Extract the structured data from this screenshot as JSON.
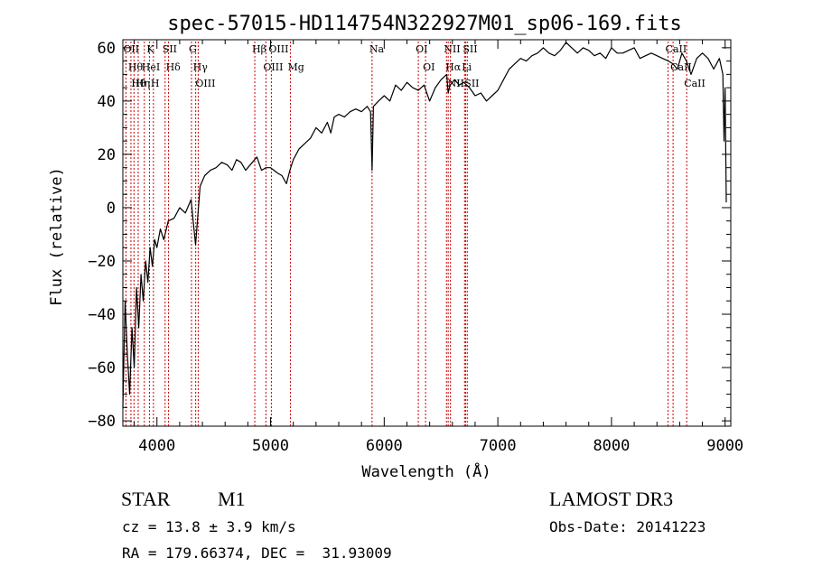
{
  "chart_data": {
    "type": "line",
    "title": "spec-57015-HD114754N322927M01_sp06-169.fits",
    "xlabel": "Wavelength (Å)",
    "ylabel": "Flux (relative)",
    "xlim": [
      3700,
      9050
    ],
    "ylim": [
      -82,
      63
    ],
    "xticks": [
      4000,
      5000,
      6000,
      7000,
      8000,
      9000
    ],
    "yticks": [
      -80,
      -60,
      -40,
      -20,
      0,
      20,
      40,
      60
    ],
    "grid": false,
    "legend": "none",
    "line_color": "#000000",
    "marker_color": "#cc0000",
    "x": [
      3700,
      3720,
      3740,
      3760,
      3780,
      3800,
      3820,
      3840,
      3860,
      3880,
      3900,
      3920,
      3940,
      3960,
      3980,
      4000,
      4030,
      4060,
      4100,
      4150,
      4200,
      4250,
      4300,
      4340,
      4380,
      4420,
      4470,
      4520,
      4570,
      4620,
      4660,
      4700,
      4740,
      4780,
      4820,
      4860,
      4880,
      4920,
      4960,
      5000,
      5030,
      5060,
      5100,
      5140,
      5170,
      5200,
      5250,
      5300,
      5350,
      5400,
      5450,
      5500,
      5530,
      5560,
      5600,
      5650,
      5700,
      5750,
      5800,
      5850,
      5880,
      5893,
      5905,
      5950,
      6000,
      6050,
      6100,
      6150,
      6200,
      6250,
      6300,
      6350,
      6400,
      6450,
      6500,
      6550,
      6563,
      6580,
      6620,
      6660,
      6700,
      6750,
      6800,
      6850,
      6900,
      6950,
      7000,
      7050,
      7100,
      7150,
      7200,
      7250,
      7300,
      7350,
      7400,
      7450,
      7500,
      7550,
      7600,
      7650,
      7700,
      7750,
      7800,
      7850,
      7900,
      7950,
      8000,
      8050,
      8100,
      8150,
      8200,
      8250,
      8300,
      8350,
      8400,
      8450,
      8500,
      8540,
      8580,
      8620,
      8660,
      8700,
      8750,
      8800,
      8850,
      8900,
      8950,
      8980,
      8990,
      9000,
      9010
    ],
    "y": [
      -75,
      -35,
      -55,
      -70,
      -45,
      -60,
      -30,
      -45,
      -25,
      -35,
      -20,
      -28,
      -15,
      -22,
      -12,
      -15,
      -8,
      -12,
      -5,
      -4,
      0,
      -2,
      3,
      -14,
      8,
      12,
      14,
      15,
      17,
      16,
      14,
      18,
      17,
      14,
      16,
      18,
      19,
      14,
      15,
      15,
      14,
      13,
      12,
      9,
      14,
      18,
      22,
      24,
      26,
      30,
      28,
      32,
      28,
      34,
      35,
      34,
      36,
      37,
      36,
      38,
      36,
      14,
      38,
      40,
      42,
      40,
      46,
      44,
      47,
      45,
      44,
      46,
      40,
      45,
      48,
      50,
      43,
      46,
      48,
      46,
      47,
      45,
      42,
      43,
      40,
      42,
      44,
      48,
      52,
      54,
      56,
      55,
      57,
      58,
      60,
      58,
      57,
      59,
      62,
      60,
      58,
      60,
      59,
      57,
      58,
      56,
      60,
      58,
      58,
      59,
      60,
      56,
      57,
      58,
      57,
      56,
      55,
      54,
      52,
      58,
      55,
      50,
      56,
      58,
      56,
      52,
      56,
      50,
      25,
      45,
      2
    ],
    "lines": [
      {
        "wave": 3727,
        "label": "OII"
      },
      {
        "wave": 3771,
        "label": "Hθ"
      },
      {
        "wave": 3798,
        "label": "Hθ"
      },
      {
        "wave": 3835,
        "label": "Hη"
      },
      {
        "wave": 3889,
        "label": "HeI"
      },
      {
        "wave": 3934,
        "label": "K"
      },
      {
        "wave": 3969,
        "label": "H"
      },
      {
        "wave": 4072,
        "label": "SII"
      },
      {
        "wave": 4102,
        "label": "Hδ"
      },
      {
        "wave": 4304,
        "label": "G"
      },
      {
        "wave": 4341,
        "label": "Hγ"
      },
      {
        "wave": 4363,
        "label": "OIII"
      },
      {
        "wave": 4861,
        "label": "Hβ"
      },
      {
        "wave": 4959,
        "label": "OIII"
      },
      {
        "wave": 5007,
        "label": "OIII"
      },
      {
        "wave": 5175,
        "label": "Mg"
      },
      {
        "wave": 5893,
        "label": "Na"
      },
      {
        "wave": 6300,
        "label": "OI"
      },
      {
        "wave": 6364,
        "label": "OI"
      },
      {
        "wave": 6548,
        "label": "NII"
      },
      {
        "wave": 6563,
        "label": "Hα"
      },
      {
        "wave": 6583,
        "label": "NII"
      },
      {
        "wave": 6707,
        "label": "Li"
      },
      {
        "wave": 6716,
        "label": "SII"
      },
      {
        "wave": 6731,
        "label": "SII"
      },
      {
        "wave": 8498,
        "label": "CaII"
      },
      {
        "wave": 8542,
        "label": "CaII"
      },
      {
        "wave": 8662,
        "label": "CaII"
      }
    ]
  },
  "info": {
    "object_class": "STAR",
    "subclass": "M1",
    "survey": "LAMOST DR3",
    "cz": "cz = 13.8 ± 3.9 km/s",
    "obs_date": "Obs-Date: 20141223",
    "coords": "RA = 179.66374, DEC =  31.93009"
  }
}
